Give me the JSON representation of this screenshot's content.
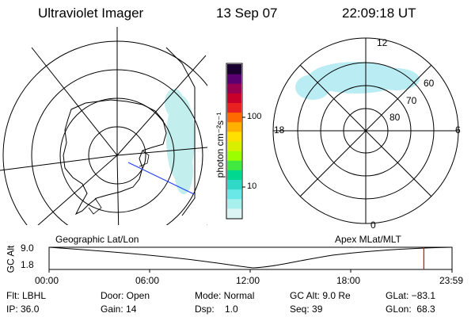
{
  "header": {
    "title": "Ultraviolet Imager",
    "date": "13 Sep 07",
    "time": "22:09:18 UT"
  },
  "left_map": {
    "label": "Geographic Lat/Lon"
  },
  "colorbar": {
    "unit_label": "photon cm⁻²s⁻¹",
    "ticks": [
      "100",
      "10"
    ],
    "colors": [
      "#1a0030",
      "#5a0070",
      "#9a0050",
      "#c8002a",
      "#e82020",
      "#ff6a00",
      "#ffb000",
      "#ffe000",
      "#d8f000",
      "#9cff00",
      "#40e840",
      "#00d890",
      "#30d8c8",
      "#6ae8e8",
      "#a8f0ee",
      "#dcf4f4"
    ]
  },
  "right_map": {
    "label": "Apex MLat/MLT",
    "mlt_labels": [
      "12",
      "18",
      "6",
      "0"
    ],
    "lat_labels": [
      "60",
      "70",
      "80"
    ]
  },
  "timeline": {
    "axis_label": "GC Alt",
    "y_ticks": [
      "9.0",
      "1.8"
    ],
    "x_ticks": [
      "00:00",
      "06:00",
      "12:00",
      "18:00",
      "23:59"
    ],
    "current_fraction": 0.93,
    "marker_color": "#e00000"
  },
  "status": {
    "filter": "Flt: LBHL",
    "door": "Door: Open",
    "mode": "Mode: Normal",
    "gc_alt": "GC Alt: 9.0 Re",
    "glat": "GLat: −83.1",
    "ip": "IP: 36.0",
    "gain": "Gain: 14",
    "dsp": "Dsp:    1.0",
    "seq": "Seq: 39",
    "glon": "GLon:  68.3"
  }
}
